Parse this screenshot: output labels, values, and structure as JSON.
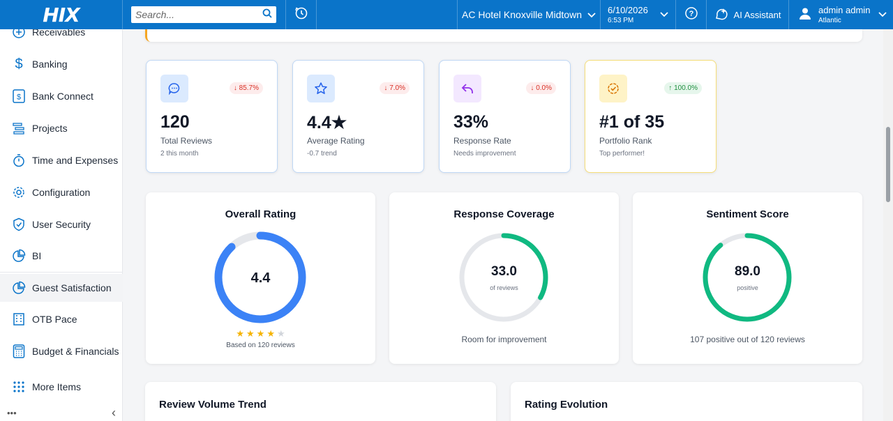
{
  "topbar": {
    "logo": "HIX",
    "search_placeholder": "Search...",
    "hotel": "AC Hotel Knoxville Midtown",
    "date": "6/10/2026",
    "time": "6:53 PM",
    "ai_label": "AI Assistant",
    "user_name": "admin admin",
    "user_region": "Atlantic"
  },
  "sidebar": {
    "items": [
      {
        "label": "Receivables",
        "icon": "plus-circle-icon"
      },
      {
        "label": "Banking",
        "icon": "dollar-icon"
      },
      {
        "label": "Bank Connect",
        "icon": "bank-connect-icon"
      },
      {
        "label": "Projects",
        "icon": "projects-icon"
      },
      {
        "label": "Time and Expenses",
        "icon": "stopwatch-icon"
      },
      {
        "label": "Configuration",
        "icon": "gear-icon"
      },
      {
        "label": "User Security",
        "icon": "shield-icon"
      },
      {
        "label": "BI",
        "icon": "pie-chart-icon"
      },
      {
        "label": "Guest Satisfaction",
        "icon": "pie-chart-icon"
      },
      {
        "label": "OTB Pace",
        "icon": "building-icon"
      },
      {
        "label": "Budget & Financials",
        "icon": "calculator-icon"
      },
      {
        "label": "More Items",
        "icon": "grid-dots-icon"
      }
    ],
    "footer_dots": "•••",
    "collapse_icon": "‹"
  },
  "stats": [
    {
      "value": "120",
      "label": "Total Reviews",
      "sub": "2 this month",
      "badge": "↓ 85.7%",
      "trend": "down",
      "icon": "chat-icon",
      "icon_bg": "#dbeafe",
      "icon_color": "#2563eb"
    },
    {
      "value": "4.4★",
      "label": "Average Rating",
      "sub": "-0.7 trend",
      "badge": "↓ 7.0%",
      "trend": "down",
      "icon": "star-icon",
      "icon_bg": "#dbeafe",
      "icon_color": "#2563eb"
    },
    {
      "value": "33%",
      "label": "Response Rate",
      "sub": "Needs improvement",
      "badge": "↓ 0.0%",
      "trend": "down",
      "icon": "reply-icon",
      "icon_bg": "#f3e8ff",
      "icon_color": "#9333ea"
    },
    {
      "value": "#1 of 35",
      "label": "Portfolio Rank",
      "sub": "Top performer!",
      "badge": "↑ 100.0%",
      "trend": "up",
      "icon": "badge-check-icon",
      "icon_bg": "#fef3c7",
      "icon_color": "#d97706"
    }
  ],
  "gauges": [
    {
      "title": "Overall Rating",
      "value": "4.4",
      "sub": "",
      "foot": "Based on 120 reviews",
      "fraction": 0.88,
      "color": "#3b82f6",
      "stars": 4
    },
    {
      "title": "Response Coverage",
      "value": "33.0",
      "sub": "of reviews",
      "foot": "Room for improvement",
      "fraction": 0.33,
      "color": "#10b981"
    },
    {
      "title": "Sentiment Score",
      "value": "89.0",
      "sub": "positive",
      "foot": "107 positive out of 120 reviews",
      "fraction": 0.89,
      "color": "#10b981"
    }
  ],
  "bottom": {
    "left_title": "Review Volume Trend",
    "right_title": "Rating Evolution"
  }
}
